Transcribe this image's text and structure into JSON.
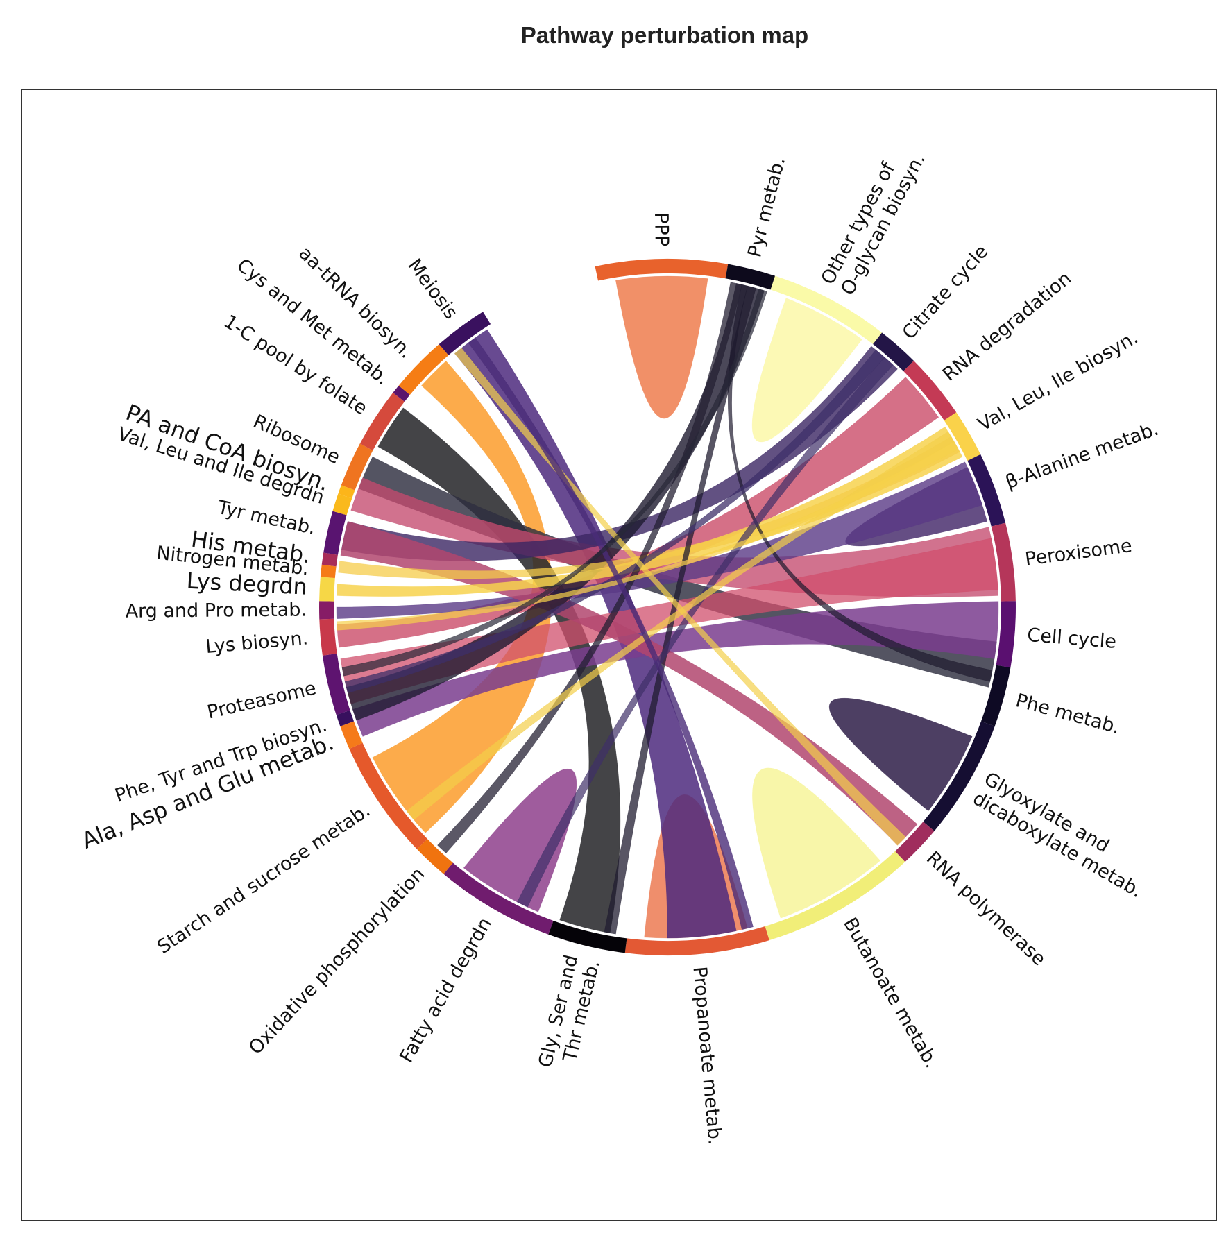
{
  "title": "Pathway perturbation map",
  "chart_data": {
    "type": "chord",
    "title": "Pathway perturbation map",
    "segments": [
      {
        "label": "PPP",
        "color": "#e8622c",
        "start_deg": -12,
        "end_deg": 10
      },
      {
        "label": "Pyr metab.",
        "color": "#0d0a1c",
        "start_deg": 10,
        "end_deg": 18
      },
      {
        "label": "Other types of\nO-glycan biosyn.",
        "color": "#fafaa8",
        "start_deg": 18,
        "end_deg": 38
      },
      {
        "label": "Citrate cycle",
        "color": "#231547",
        "start_deg": 38,
        "end_deg": 45
      },
      {
        "label": "RNA degradation",
        "color": "#c43a55",
        "start_deg": 45,
        "end_deg": 56
      },
      {
        "label": "Val, Leu, Ile biosyn.",
        "color": "#fad24a",
        "start_deg": 56,
        "end_deg": 64
      },
      {
        "label": "β-Alanine metab.",
        "color": "#2b1357",
        "start_deg": 64,
        "end_deg": 76
      },
      {
        "label": "Peroxisome",
        "color": "#b5365a",
        "start_deg": 76,
        "end_deg": 89
      },
      {
        "label": "Cell cycle",
        "color": "#5a1070",
        "start_deg": 89,
        "end_deg": 100
      },
      {
        "label": "Phe metab.",
        "color": "#0e0a24",
        "start_deg": 100,
        "end_deg": 110
      },
      {
        "label": "Glyoxylate and\ndicaboxylate metab.",
        "color": "#150e32",
        "start_deg": 110,
        "end_deg": 130
      },
      {
        "label": "RNA polymerase",
        "color": "#a02d5d",
        "start_deg": 130,
        "end_deg": 137
      },
      {
        "label": "Butanoate metab.",
        "color": "#f1ee78",
        "start_deg": 137,
        "end_deg": 163
      },
      {
        "label": "Propanoate metab.",
        "color": "#e35934",
        "start_deg": 163,
        "end_deg": 187
      },
      {
        "label": "Gly, Ser and\nThr metab.",
        "color": "#050308",
        "start_deg": 187,
        "end_deg": 200
      },
      {
        "label": "Fatty acid degrdn",
        "color": "#701c6e",
        "start_deg": 200,
        "end_deg": 220
      },
      {
        "label": "Oxidative phosphorylation",
        "color": "#f0730f",
        "start_deg": 220,
        "end_deg": 226
      },
      {
        "label": "Starch and sucrose metab.",
        "color": "#e5592b",
        "start_deg": 226,
        "end_deg": 246
      },
      {
        "label": "Ala, Asp and Glu metab.",
        "color": "#f57a1a",
        "start_deg": 246,
        "end_deg": 250
      },
      {
        "label": "Phe, Tyr and Trp biosyn.",
        "color": "#38105e",
        "start_deg": 250,
        "end_deg": 252
      },
      {
        "label": "Proteasome",
        "color": "#5e1470",
        "start_deg": 252,
        "end_deg": 262
      },
      {
        "label": "Lys biosyn.",
        "color": "#c8394a",
        "start_deg": 262,
        "end_deg": 268
      },
      {
        "label": "Arg and Pro metab.",
        "color": "#861c66",
        "start_deg": 268,
        "end_deg": 271
      },
      {
        "label": "Lys degrdn",
        "color": "#f6d746",
        "start_deg": 271,
        "end_deg": 275
      },
      {
        "label": "Nitrogen metab.",
        "color": "#f57b17",
        "start_deg": 275,
        "end_deg": 277
      },
      {
        "label": "His metab.",
        "color": "#a82c58",
        "start_deg": 277,
        "end_deg": 279
      },
      {
        "label": "Tyr metab.",
        "color": "#591470",
        "start_deg": 279,
        "end_deg": 286
      },
      {
        "label": "Val, Leu and Ile degrdn",
        "color": "#fab91c",
        "start_deg": 286,
        "end_deg": 289
      },
      {
        "label": "PA and CoA biosyn.",
        "color": "#fcb51a",
        "start_deg": 289,
        "end_deg": 290.5
      },
      {
        "label": "Ribosome",
        "color": "#ef7420",
        "start_deg": 290.5,
        "end_deg": 298
      },
      {
        "label": "1-C pool by folate",
        "color": "#d54a3c",
        "start_deg": 298,
        "end_deg": 308
      },
      {
        "label": "Cys and Met metab.",
        "color": "#5b146b",
        "start_deg": 308,
        "end_deg": 309.5
      },
      {
        "label": "aa-tRNA biosyn.",
        "color": "#f57d15",
        "start_deg": 309.5,
        "end_deg": 319
      },
      {
        "label": "Meiosis",
        "color": "#3a115f",
        "start_deg": 319,
        "end_deg": 328
      }
    ],
    "chords": [
      {
        "source": [
          -9,
          7
        ],
        "target": [
          -9,
          7
        ],
        "color": "#ef7d4e",
        "opacity": 0.85
      },
      {
        "source": [
          21,
          36
        ],
        "target": [
          21,
          36
        ],
        "color": "#fbf8a8",
        "opacity": 0.85
      },
      {
        "source": [
          140,
          160
        ],
        "target": [
          140,
          160
        ],
        "color": "#f7f59a",
        "opacity": 0.85
      },
      {
        "source": [
          166,
          184
        ],
        "target": [
          166,
          184
        ],
        "color": "#ec7a52",
        "opacity": 0.85
      },
      {
        "source": [
          203,
          218
        ],
        "target": [
          203,
          218
        ],
        "color": "#8e3f8c",
        "opacity": 0.85
      },
      {
        "source": [
          113,
          128
        ],
        "target": [
          113,
          128
        ],
        "color": "#3a2a52",
        "opacity": 0.9
      },
      {
        "source": [
          65,
          75
        ],
        "target": [
          65,
          75
        ],
        "color": "#4a2f6e",
        "opacity": 0.85
      },
      {
        "source": [
          312,
          318
        ],
        "target": [
          227,
          243
        ],
        "color": "#fb9c2c",
        "opacity": 0.85
      },
      {
        "source": [
          320,
          327
        ],
        "target": [
          168,
          180
        ],
        "color": "#4e2a7e",
        "opacity": 0.85
      },
      {
        "source": [
          299,
          307
        ],
        "target": [
          190,
          199
        ],
        "color": "#2a2a2e",
        "opacity": 0.88
      },
      {
        "source": [
          291,
          297
        ],
        "target": [
          96,
          104
        ],
        "color": "#2e2e40",
        "opacity": 0.82
      },
      {
        "source": [
          287,
          293
        ],
        "target": [
          76,
          88
        ],
        "color": "#c44a6e",
        "opacity": 0.78
      },
      {
        "source": [
          253,
          261
        ],
        "target": [
          78,
          87
        ],
        "color": "#d04f6c",
        "opacity": 0.75
      },
      {
        "source": [
          263,
          267
        ],
        "target": [
          46,
          55
        ],
        "color": "#c94865",
        "opacity": 0.78
      },
      {
        "source": [
          280,
          285
        ],
        "target": [
          38,
          44
        ],
        "color": "#3b2563",
        "opacity": 0.8
      },
      {
        "source": [
          268,
          270
        ],
        "target": [
          64,
          72
        ],
        "color": "#5a3a86",
        "opacity": 0.8
      },
      {
        "source": [
          247,
          252
        ],
        "target": [
          89,
          99
        ],
        "color": "#7a3d8e",
        "opacity": 0.85
      },
      {
        "source": [
          131,
          136
        ],
        "target": [
          279,
          285
        ],
        "color": "#b2466e",
        "opacity": 0.85
      },
      {
        "source": [
          12,
          17
        ],
        "target": [
          250,
          256
        ],
        "color": "#1e1a30",
        "opacity": 0.8
      },
      {
        "source": [
          272,
          274
        ],
        "target": [
          57,
          63
        ],
        "color": "#f7d24e",
        "opacity": 0.85
      },
      {
        "source": [
          276,
          278
        ],
        "target": [
          59,
          62
        ],
        "color": "#f5cc4a",
        "opacity": 0.75
      },
      {
        "source": [
          11,
          13
        ],
        "target": [
          222,
          224
        ],
        "color": "#242033",
        "opacity": 0.75
      },
      {
        "source": [
          14,
          15.5
        ],
        "target": [
          189,
          191
        ],
        "color": "#201c30",
        "opacity": 0.75
      },
      {
        "source": [
          13,
          14
        ],
        "target": [
          101,
          103
        ],
        "color": "#1e1a2e",
        "opacity": 0.7
      },
      {
        "source": [
          39,
          41
        ],
        "target": [
          255,
          257
        ],
        "color": "#3e2f68",
        "opacity": 0.75
      },
      {
        "source": [
          41,
          43
        ],
        "target": [
          205,
          207
        ],
        "color": "#3e2f68",
        "opacity": 0.7
      },
      {
        "source": [
          58,
          60
        ],
        "target": [
          230,
          232
        ],
        "color": "#f3cf48",
        "opacity": 0.7
      },
      {
        "source": [
          60,
          61.5
        ],
        "target": [
          266,
          267.5
        ],
        "color": "#f6d24a",
        "opacity": 0.7
      },
      {
        "source": [
          320,
          321.5
        ],
        "target": [
          134,
          136
        ],
        "color": "#f4d04c",
        "opacity": 0.7
      },
      {
        "source": [
          323,
          324.5
        ],
        "target": [
          165,
          167
        ],
        "color": "#4a2c78",
        "opacity": 0.8
      },
      {
        "source": [
          16,
          17.5
        ],
        "target": [
          258,
          259.5
        ],
        "color": "#282838",
        "opacity": 0.7
      }
    ]
  }
}
